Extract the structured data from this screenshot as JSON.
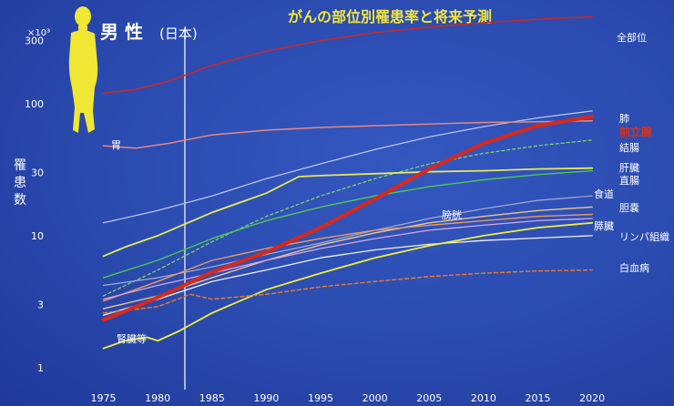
{
  "chart_data": {
    "type": "line",
    "title": "がんの部位別罹患率と将来予測",
    "subtitle": "男 性",
    "subtitle_note": "(日本)",
    "ylabel": "罹患数",
    "yunit": "×10³",
    "yscale": "log",
    "ylim": [
      0.8,
      520
    ],
    "xlim": [
      1974.2,
      2022
    ],
    "x_ticks": [
      1975,
      1980,
      1985,
      1990,
      1995,
      2000,
      2005,
      2010,
      2015,
      2020
    ],
    "y_ticks": [
      1,
      3,
      10,
      30,
      100,
      300
    ],
    "y_tick_labels": [
      "1",
      "3",
      "10",
      "30",
      "100",
      "300"
    ],
    "reference_line_x": 1982.5,
    "grid": false,
    "series": [
      {
        "name": "全部位",
        "color": "#c62a2a",
        "width": 1.6,
        "dash": "",
        "x": [
          1975,
          1978,
          1981,
          1985,
          1990,
          1995,
          2000,
          2005,
          2010,
          2015,
          2020
        ],
        "y": [
          120,
          128,
          148,
          195,
          250,
          300,
          345,
          380,
          410,
          435,
          455
        ]
      },
      {
        "name": "肺",
        "color": "#b9c4e8",
        "width": 1.3,
        "dash": "",
        "x": [
          1975,
          1980,
          1985,
          1990,
          1995,
          2000,
          2005,
          2010,
          2015,
          2020
        ],
        "y": [
          12.5,
          15.5,
          20,
          27,
          35,
          45,
          56,
          67,
          78,
          88
        ]
      },
      {
        "name": "前立腺",
        "color": "#d42a1e",
        "width": 4.2,
        "dash": "",
        "x": [
          1975,
          1978,
          1981,
          1985,
          1990,
          1995,
          2000,
          2005,
          2010,
          2015,
          2020
        ],
        "y": [
          2.3,
          2.9,
          3.7,
          5.3,
          7.5,
          11.5,
          19,
          32,
          50,
          68,
          80
        ]
      },
      {
        "name": "胃",
        "color": "#e98880",
        "width": 1.5,
        "dash": "",
        "x": [
          1975,
          1978,
          1981,
          1985,
          1990,
          1995,
          2000,
          2005,
          2010,
          2015,
          2020
        ],
        "y": [
          48,
          46,
          50,
          58,
          63,
          66,
          68,
          70,
          72,
          73,
          74
        ]
      },
      {
        "name": "結腸",
        "color": "#7ed36b",
        "width": 1.3,
        "dash": "3,3",
        "x": [
          1975,
          1980,
          1985,
          1990,
          1995,
          2000,
          2005,
          2010,
          2015,
          2020
        ],
        "y": [
          3.5,
          5.5,
          9,
          14,
          20,
          27,
          35,
          42,
          48,
          53
        ]
      },
      {
        "name": "肝臓",
        "color": "#e6e85a",
        "width": 1.8,
        "dash": "",
        "x": [
          1975,
          1977,
          1980,
          1985,
          1990,
          1993,
          1995,
          2000,
          2005,
          2010,
          2015,
          2020
        ],
        "y": [
          7,
          8.2,
          10,
          15,
          21,
          28,
          28.5,
          29.5,
          30.5,
          31,
          32,
          32.5
        ]
      },
      {
        "name": "直腸",
        "color": "#4cc94e",
        "width": 1.4,
        "dash": "",
        "x": [
          1975,
          1980,
          1985,
          1990,
          1995,
          2000,
          2005,
          2010,
          2015,
          2020
        ],
        "y": [
          4.8,
          6.5,
          9.5,
          13,
          16.5,
          20,
          23.5,
          26.5,
          29,
          31
        ]
      },
      {
        "name": "食道",
        "color": "#a5acd2",
        "width": 1.2,
        "dash": "",
        "x": [
          1975,
          1980,
          1985,
          1990,
          1995,
          2000,
          2005,
          2010,
          2015,
          2020
        ],
        "y": [
          4.2,
          4.8,
          5.8,
          7.2,
          8.8,
          11,
          13.5,
          16,
          18.5,
          20
        ]
      },
      {
        "name": "胆嚢",
        "color": "#e9c88a",
        "width": 1.4,
        "dash": "",
        "x": [
          1975,
          1980,
          1985,
          1990,
          1995,
          2000,
          2005,
          2010,
          2015,
          2020
        ],
        "y": [
          2.8,
          3.5,
          4.8,
          6.5,
          8.5,
          10.5,
          12.5,
          14,
          15.5,
          16.5
        ]
      },
      {
        "name": "膀胱",
        "color": "#eb9a5c",
        "width": 1.4,
        "dash": "",
        "x": [
          1975,
          1980,
          1985,
          1990,
          1995,
          2000,
          2005,
          2010,
          2015,
          2020
        ],
        "y": [
          3.2,
          4.5,
          6.5,
          8,
          9.5,
          11,
          12,
          13,
          14,
          14.5
        ]
      },
      {
        "name": "膵臓",
        "color": "#d6a6e3",
        "width": 1.3,
        "dash": "",
        "x": [
          1975,
          1980,
          1985,
          1990,
          1995,
          2000,
          2005,
          2010,
          2015,
          2020
        ],
        "y": [
          3.3,
          4.2,
          5.2,
          6.5,
          8,
          9.5,
          11,
          12,
          13,
          13.5
        ]
      },
      {
        "name": "リンパ組織",
        "color": "#f1f1f1",
        "width": 1.3,
        "dash": "",
        "x": [
          1975,
          1980,
          1985,
          1990,
          1995,
          2000,
          2005,
          2010,
          2015,
          2020
        ],
        "y": [
          2.5,
          3.3,
          4.5,
          5.5,
          6.8,
          7.8,
          8.6,
          9.2,
          9.6,
          10
        ]
      },
      {
        "name": "腎臓等",
        "color": "#f0ef3a",
        "width": 1.8,
        "dash": "",
        "x": [
          1975,
          1977,
          1979,
          1980,
          1982,
          1985,
          1990,
          1995,
          2000,
          2005,
          2010,
          2015,
          2020
        ],
        "y": [
          1.4,
          1.6,
          1.7,
          1.6,
          1.9,
          2.6,
          3.9,
          5.2,
          6.8,
          8.4,
          10,
          11.5,
          12.5
        ]
      },
      {
        "name": "白血病",
        "color": "#e2782e",
        "width": 1.5,
        "dash": "4,3",
        "x": [
          1975,
          1980,
          1983,
          1985,
          1990,
          1995,
          2000,
          2005,
          2010,
          2015,
          2020
        ],
        "y": [
          2.6,
          2.9,
          3.6,
          3.3,
          3.6,
          4.1,
          4.5,
          4.9,
          5.2,
          5.4,
          5.5
        ]
      }
    ],
    "series_label_color": "#ffffff",
    "highlight_label_color": "#d8321d",
    "title_color": "#f2e63a",
    "highlight_series": "前立腺"
  }
}
